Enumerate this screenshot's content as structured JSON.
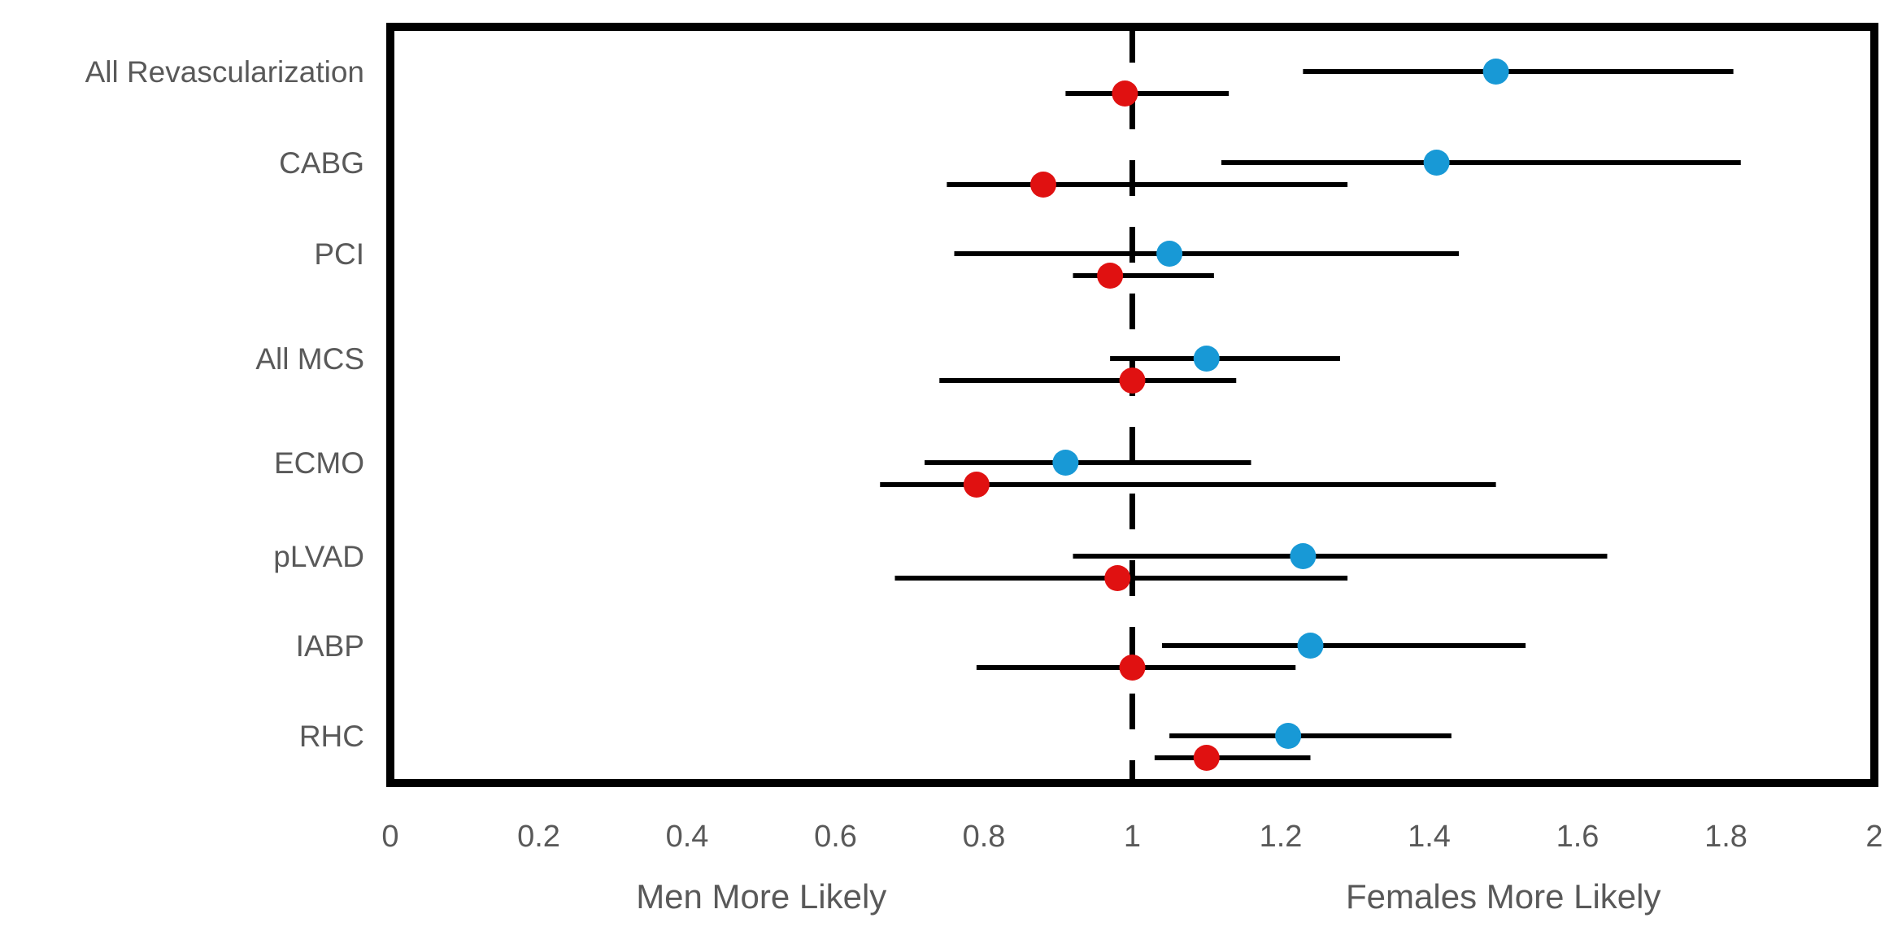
{
  "chart_data": {
    "type": "scatter",
    "subtype": "forest-plot",
    "title": "",
    "orientation": "horizontal-rows",
    "categories": [
      "All Revascularization",
      "CABG",
      "PCI",
      "All MCS",
      "ECMO",
      "pLVAD",
      "IABP",
      "RHC"
    ],
    "x_axis": {
      "range": [
        0,
        2
      ],
      "ticks": [
        0,
        0.2,
        0.4,
        0.6,
        0.8,
        1,
        1.2,
        1.4,
        1.6,
        1.8,
        2
      ],
      "tick_labels": [
        "0",
        "0.2",
        "0.4",
        "0.6",
        "0.8",
        "1",
        "1.2",
        "1.4",
        "1.6",
        "1.8",
        "2"
      ],
      "grid": false
    },
    "reference_line_x": 1,
    "reference_line_style": "dashed",
    "annotations": {
      "left_of_reference": "Men More Likely",
      "right_of_reference": "Females More Likely"
    },
    "legend": "none",
    "series": [
      {
        "name": "blue-markers",
        "color": "#1899D6",
        "points": [
          {
            "category": "All Revascularization",
            "value": 1.49,
            "ci_low": 1.23,
            "ci_high": 1.81
          },
          {
            "category": "CABG",
            "value": 1.41,
            "ci_low": 1.12,
            "ci_high": 1.82
          },
          {
            "category": "PCI",
            "value": 1.05,
            "ci_low": 0.76,
            "ci_high": 1.44
          },
          {
            "category": "All MCS",
            "value": 1.1,
            "ci_low": 0.97,
            "ci_high": 1.28
          },
          {
            "category": "ECMO",
            "value": 0.91,
            "ci_low": 0.72,
            "ci_high": 1.16
          },
          {
            "category": "pLVAD",
            "value": 1.23,
            "ci_low": 0.92,
            "ci_high": 1.64
          },
          {
            "category": "IABP",
            "value": 1.24,
            "ci_low": 1.04,
            "ci_high": 1.53
          },
          {
            "category": "RHC",
            "value": 1.21,
            "ci_low": 1.05,
            "ci_high": 1.43
          }
        ]
      },
      {
        "name": "red-markers",
        "color": "#E01111",
        "points": [
          {
            "category": "All Revascularization",
            "value": 0.99,
            "ci_low": 0.91,
            "ci_high": 1.13
          },
          {
            "category": "CABG",
            "value": 0.88,
            "ci_low": 0.75,
            "ci_high": 1.29
          },
          {
            "category": "PCI",
            "value": 0.97,
            "ci_low": 0.92,
            "ci_high": 1.11
          },
          {
            "category": "All MCS",
            "value": 1.0,
            "ci_low": 0.74,
            "ci_high": 1.14
          },
          {
            "category": "ECMO",
            "value": 0.79,
            "ci_low": 0.66,
            "ci_high": 1.49
          },
          {
            "category": "pLVAD",
            "value": 0.98,
            "ci_low": 0.68,
            "ci_high": 1.29
          },
          {
            "category": "IABP",
            "value": 1.0,
            "ci_low": 0.79,
            "ci_high": 1.22
          },
          {
            "category": "RHC",
            "value": 1.1,
            "ci_low": 1.03,
            "ci_high": 1.24
          }
        ]
      }
    ]
  },
  "colors": {
    "blue_marker": "#1899D6",
    "red_marker": "#E01111",
    "axis_text": "#595959",
    "line": "#000000",
    "background": "#FFFFFF"
  }
}
